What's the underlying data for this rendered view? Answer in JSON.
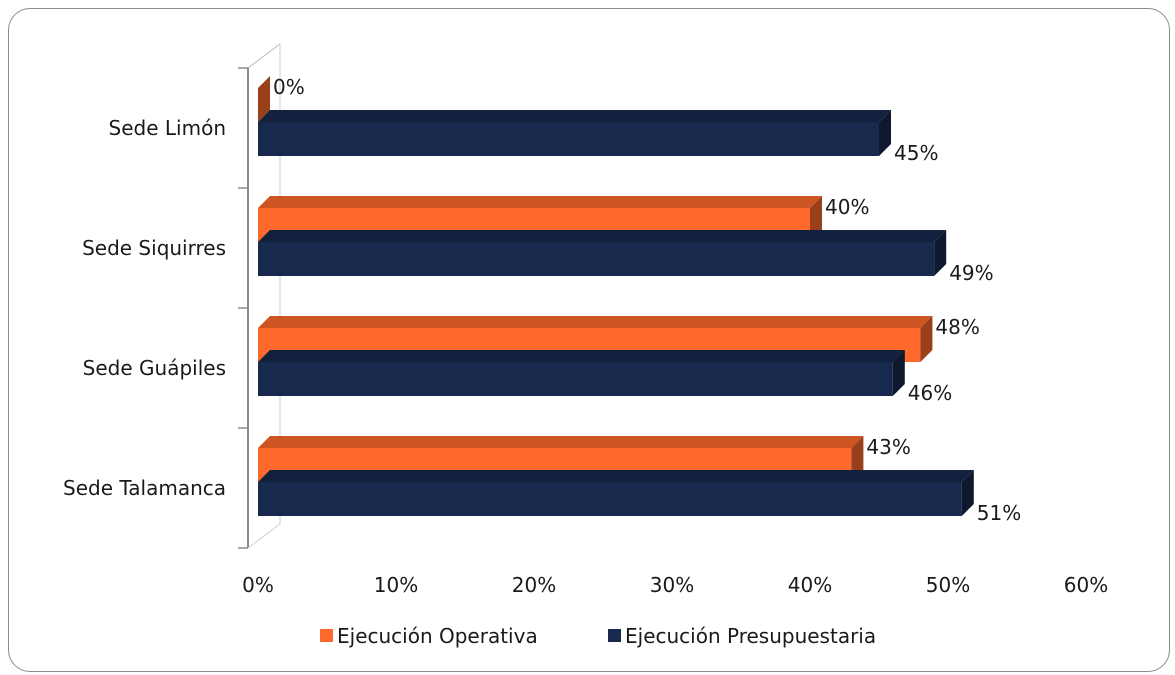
{
  "chart_data": {
    "type": "bar",
    "orientation": "horizontal",
    "style": "3d",
    "categories": [
      "Sede Limón",
      "Sede Siquirres",
      "Sede Guápiles",
      "Sede Talamanca"
    ],
    "series": [
      {
        "name": "Ejecución Operativa",
        "color": "#ff6a2c",
        "values": [
          0,
          40,
          48,
          43
        ],
        "labels": [
          "0%",
          "40%",
          "48%",
          "43%"
        ]
      },
      {
        "name": "Ejecución Presupuestaria",
        "color": "#172a4e",
        "values": [
          45,
          49,
          46,
          51
        ],
        "labels": [
          "45%",
          "49%",
          "46%",
          "51%"
        ]
      }
    ],
    "xlim": [
      0,
      60
    ],
    "xticks": [
      "0%",
      "10%",
      "20%",
      "30%",
      "40%",
      "50%",
      "60%"
    ],
    "legend": "bottom",
    "grid": false
  }
}
